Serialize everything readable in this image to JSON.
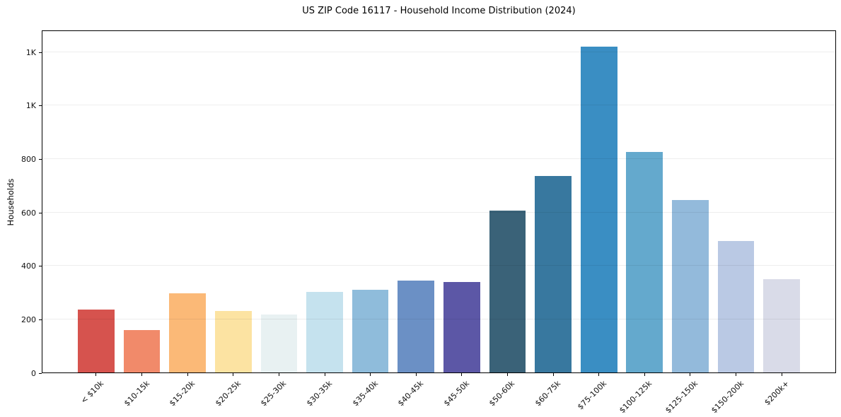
{
  "figure": {
    "title": "US ZIP Code 16117 - Household Income Distribution (2024)"
  },
  "chart_data": {
    "type": "bar",
    "title": "US ZIP Code 16117 - Household Income Distribution (2024)",
    "xlabel": "",
    "ylabel": "Households",
    "categories": [
      "< $10k",
      "$10-15k",
      "$15-20k",
      "$20-25k",
      "$25-30k",
      "$30-35k",
      "$35-40k",
      "$40-45k",
      "$45-50k",
      "$50-60k",
      "$60-75k",
      "$75-100k",
      "$100-125k",
      "$125-150k",
      "$150-200k",
      "$200k+"
    ],
    "values": [
      235,
      158,
      296,
      231,
      217,
      301,
      310,
      344,
      338,
      605,
      735,
      1218,
      826,
      644,
      491,
      349
    ],
    "bar_colors": [
      "#d6534e",
      "#f18a6a",
      "#fbb977",
      "#fce3a2",
      "#e8f1f2",
      "#c5e2ee",
      "#8fbcdb",
      "#6b90c5",
      "#5c57a6",
      "#3a6278",
      "#38789f",
      "#3a8ec3",
      "#64a9cd",
      "#93badb",
      "#bac9e4",
      "#d9dbe8"
    ],
    "ylim": [
      0,
      1282
    ],
    "yticks": {
      "values": [
        0,
        200,
        400,
        600,
        800,
        1000,
        1200
      ],
      "labels": [
        "0",
        "200",
        "400",
        "600",
        "800",
        "1K",
        "1K"
      ]
    },
    "grid": "horizontal",
    "legend": "none",
    "background_color": "#ffffff",
    "spine_color": "#000000",
    "tick_color": "#111111"
  }
}
